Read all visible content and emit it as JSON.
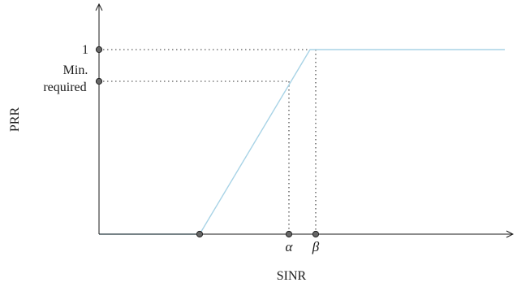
{
  "diagram": {
    "labels": {
      "y_axis": "PRR",
      "x_axis": "SINR",
      "y_tick_one": "1",
      "y_tick_min_line1": "Min.",
      "y_tick_min_line2": "required",
      "x_tick_alpha": "α",
      "x_tick_beta": "β"
    },
    "colors": {
      "curve": "#a8d3e6",
      "axis": "#1a1a1a",
      "guide": "#333333",
      "marker_fill": "#666666",
      "marker_stroke": "#222222"
    }
  }
}
